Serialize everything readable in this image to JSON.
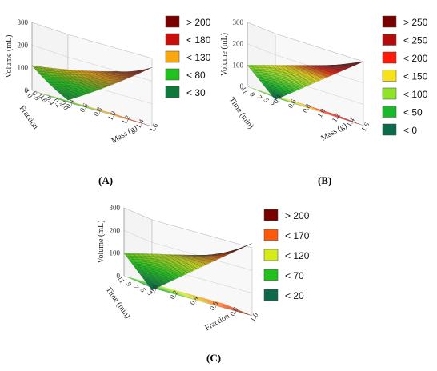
{
  "chart_data": [
    {
      "id": "A",
      "type": "surface",
      "caption": "(A)",
      "zlabel": "Volume (mL)",
      "xlabel": "Fraction",
      "ylabel": "Mass (g)",
      "z_ticks": [
        "300",
        "200",
        "100",
        "0"
      ],
      "x_ticks": [
        "1.0",
        "0.8",
        "0.6",
        "0.4",
        "0.2",
        "0.0"
      ],
      "y_ticks": [
        "0.4",
        "0.6",
        "0.8",
        "1.0",
        "1.2",
        "1.4",
        "1.6"
      ],
      "zlim": [
        0,
        300
      ],
      "surface": {
        "corner_left": 110,
        "corner_back": 190,
        "corner_right": 260,
        "corner_front": 10,
        "curvature": -30
      },
      "legend": [
        {
          "label": "> 200",
          "color": "#7a0000"
        },
        {
          "label": "< 180",
          "color": "#c8100a"
        },
        {
          "label": "< 130",
          "color": "#f6a80e"
        },
        {
          "label": "< 80",
          "color": "#22c21e"
        },
        {
          "label": "< 30",
          "color": "#0c7a3a"
        }
      ]
    },
    {
      "id": "B",
      "type": "surface",
      "caption": "(B)",
      "zlabel": "Volume (mL)",
      "xlabel": "Time (min)",
      "ylabel": "Mass (g)",
      "z_ticks": [
        "300",
        "200",
        "100",
        "0"
      ],
      "x_ticks": [
        "11",
        "9",
        "7",
        "5",
        "3"
      ],
      "y_ticks": [
        "0.4",
        "0.6",
        "0.8",
        "1.0",
        "1.2",
        "1.4",
        "1.6"
      ],
      "zlim": [
        0,
        300
      ],
      "surface": {
        "corner_left": 100,
        "corner_back": 230,
        "corner_right": 300,
        "corner_front": -10,
        "curvature": 0
      },
      "legend": [
        {
          "label": "> 250",
          "color": "#7a0000"
        },
        {
          "label": "< 250",
          "color": "#b30c0c"
        },
        {
          "label": "< 200",
          "color": "#ff1a0a"
        },
        {
          "label": "< 150",
          "color": "#f7e21a"
        },
        {
          "label": "< 100",
          "color": "#8fe32a"
        },
        {
          "label": "< 50",
          "color": "#1ab82a"
        },
        {
          "label": "< 0",
          "color": "#0c6a4a"
        }
      ]
    },
    {
      "id": "C",
      "type": "surface",
      "caption": "(C)",
      "zlabel": "Volume (mL)",
      "xlabel": "Time (min)",
      "ylabel": "Fraction",
      "z_ticks": [
        "300",
        "200",
        "100",
        "0"
      ],
      "x_ticks": [
        "11",
        "9",
        "7",
        "5",
        "3"
      ],
      "y_ticks": [
        "0.0",
        "0.2",
        "0.4",
        "0.6",
        "0.8",
        "1.0"
      ],
      "zlim": [
        0,
        300
      ],
      "surface": {
        "corner_left": 100,
        "corner_back": 210,
        "corner_right": 320,
        "corner_front": -10,
        "curvature": 0
      },
      "legend": [
        {
          "label": "> 200",
          "color": "#7a0000"
        },
        {
          "label": "< 170",
          "color": "#ff5a0a"
        },
        {
          "label": "< 120",
          "color": "#d6ec1a"
        },
        {
          "label": "< 70",
          "color": "#22c21e"
        },
        {
          "label": "< 20",
          "color": "#0c6a4a"
        }
      ]
    }
  ]
}
